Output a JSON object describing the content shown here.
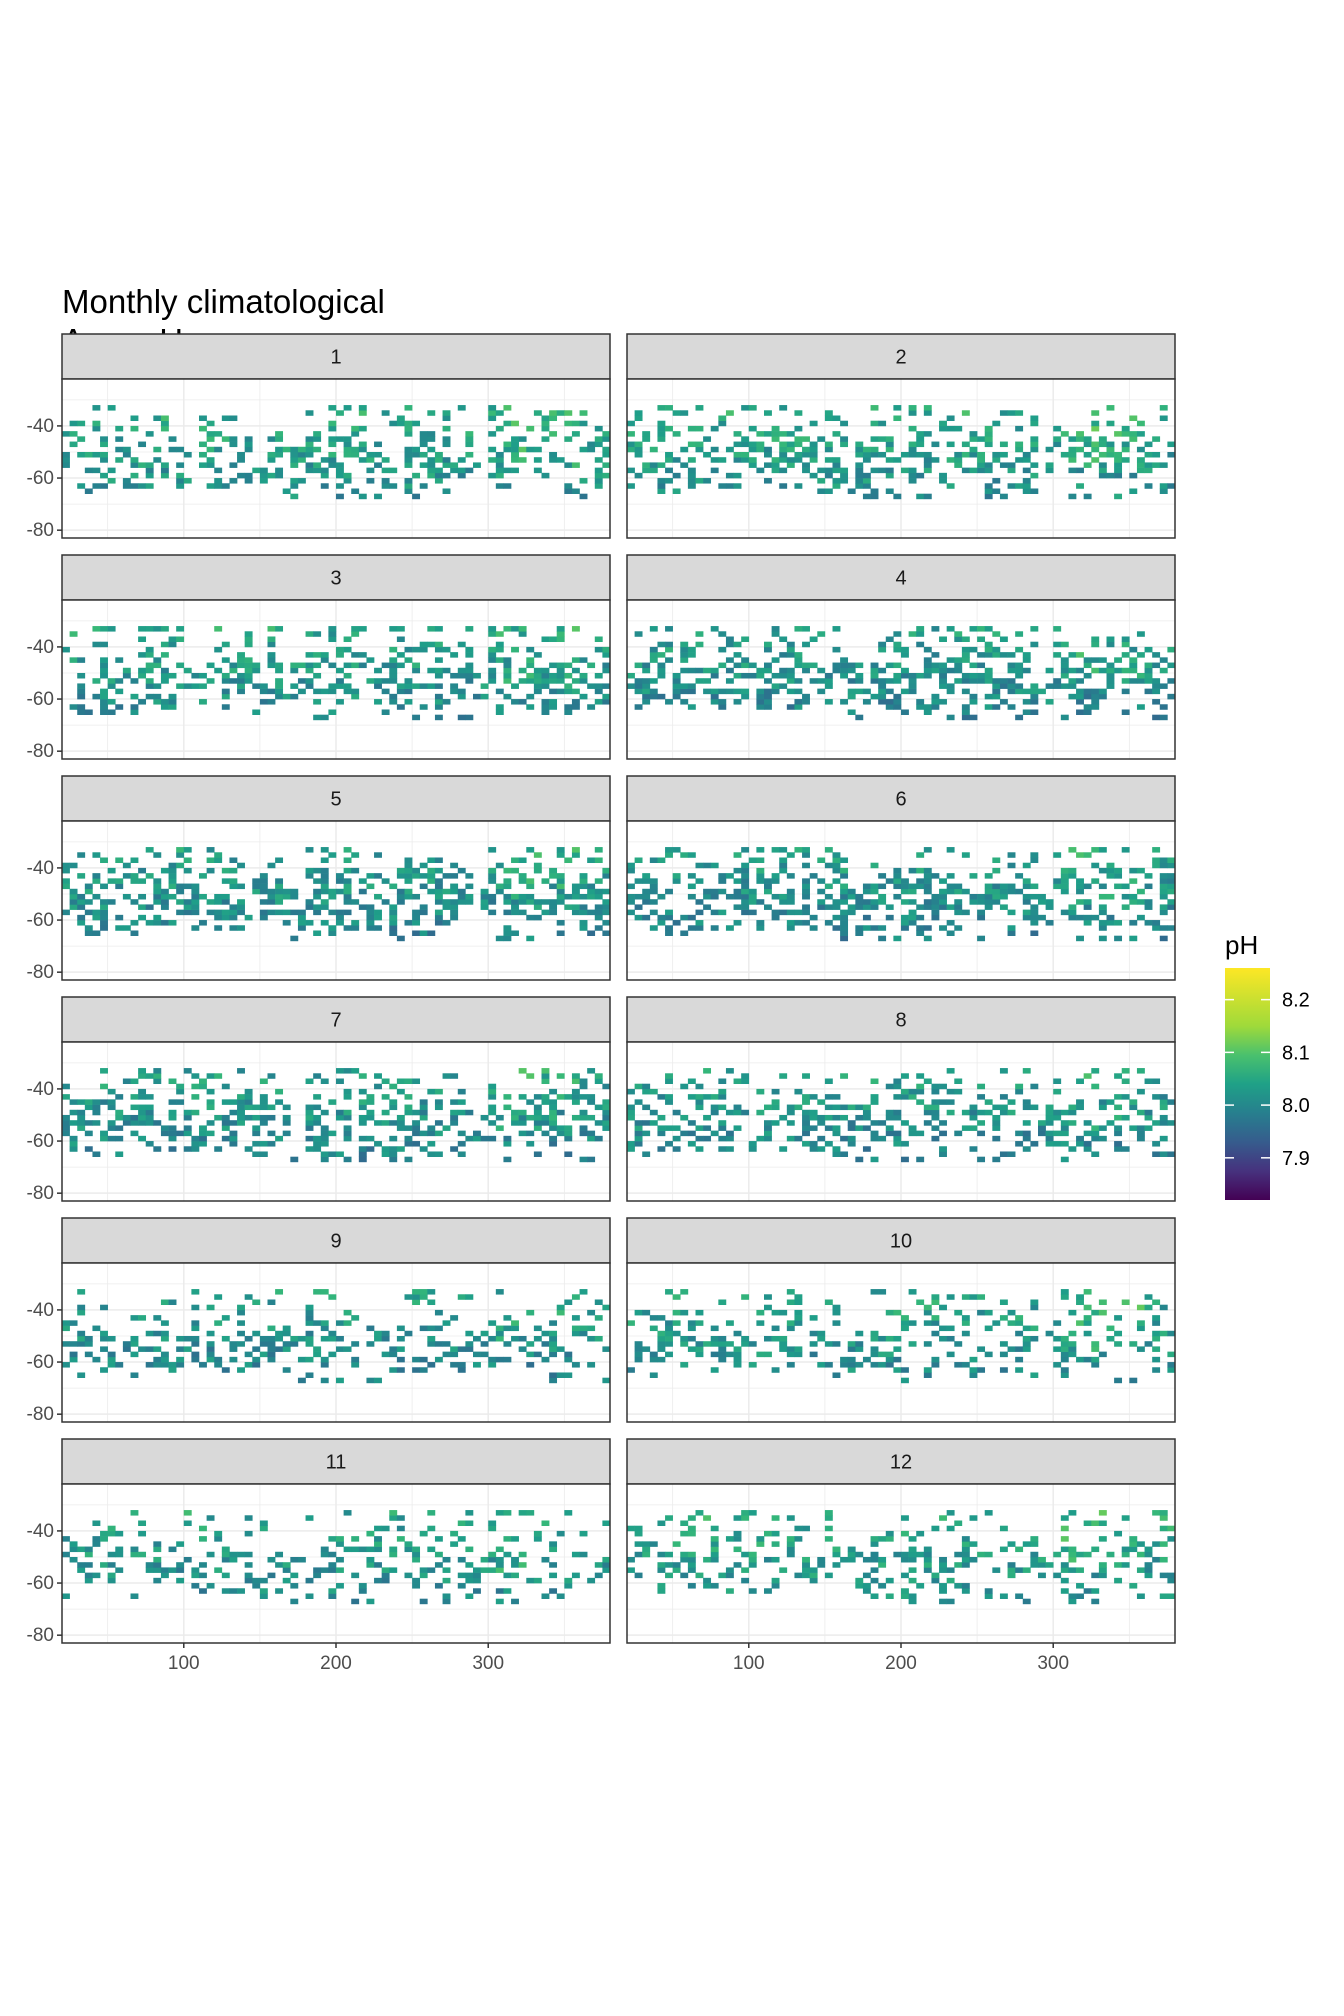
{
  "title": [
    "Monthly climatological",
    "Argo pH"
  ],
  "chart_data": {
    "type": "heatmap",
    "title": "Monthly climatological Argo pH",
    "facet_variable": "month",
    "facets": [
      "1",
      "2",
      "3",
      "4",
      "5",
      "6",
      "7",
      "8",
      "9",
      "10",
      "11",
      "12"
    ],
    "x_ticks": [
      "100",
      "200",
      "300"
    ],
    "x_tick_values": [
      100,
      200,
      300
    ],
    "y_ticks": [
      "-40",
      "-60",
      "-80"
    ],
    "y_tick_values": [
      -40,
      -60,
      -80
    ],
    "xlim": [
      20,
      380
    ],
    "ylim": [
      -83,
      -22
    ],
    "cell_size_deg": [
      5,
      2
    ],
    "legend": {
      "title": "pH",
      "breaks": [
        "8.2",
        "8.1",
        "8.0",
        "7.9"
      ],
      "break_values": [
        8.2,
        8.1,
        8.0,
        7.9
      ],
      "range": [
        7.82,
        8.26
      ],
      "palette": "viridis",
      "position": "right"
    },
    "colors": {
      "land": "#cccccc",
      "strip": "#d9d9d9",
      "grid": "#ebebeb",
      "panel_border": "#333333",
      "typical_value": "#21908c"
    },
    "data_note_density": [
      0.28,
      0.3,
      0.32,
      0.33,
      0.34,
      0.34,
      0.3,
      0.27,
      0.24,
      0.24,
      0.22,
      0.24
    ],
    "median_ph": [
      8.06,
      8.06,
      8.05,
      8.04,
      8.04,
      8.04,
      8.04,
      8.04,
      8.04,
      8.05,
      8.05,
      8.06
    ]
  }
}
